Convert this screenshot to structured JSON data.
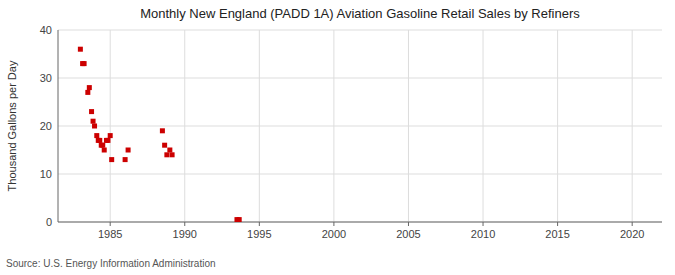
{
  "chart_data": {
    "type": "scatter",
    "title": "Monthly New England (PADD 1A) Aviation Gasoline Retail Sales by Refiners",
    "y_label": "Thousand Gallons per Day",
    "annotations": [
      "Source: U.S. Energy Information Administration"
    ],
    "color": "#cc0000",
    "marker": "square",
    "grid": true,
    "xlim": [
      1981.5,
      2022
    ],
    "ylim": [
      0,
      40
    ],
    "xticks": [
      1985,
      1990,
      1995,
      2000,
      2005,
      2010,
      2015,
      2020
    ],
    "yticks": [
      0,
      10,
      20,
      30,
      40
    ],
    "x": [
      1983.0,
      1983.15,
      1983.25,
      1983.5,
      1983.6,
      1983.75,
      1983.85,
      1983.95,
      1984.1,
      1984.2,
      1984.3,
      1984.4,
      1984.5,
      1984.6,
      1984.75,
      1984.85,
      1985.0,
      1985.1,
      1986.0,
      1986.2,
      1988.5,
      1988.65,
      1988.8,
      1989.0,
      1989.15,
      1993.5,
      1993.65
    ],
    "values": [
      36,
      33,
      33,
      27,
      28,
      23,
      21,
      20,
      18,
      17,
      17,
      16,
      16,
      15,
      17,
      17,
      18,
      13,
      13,
      15,
      19,
      16,
      14,
      15,
      14,
      0.5,
      0.5
    ]
  }
}
